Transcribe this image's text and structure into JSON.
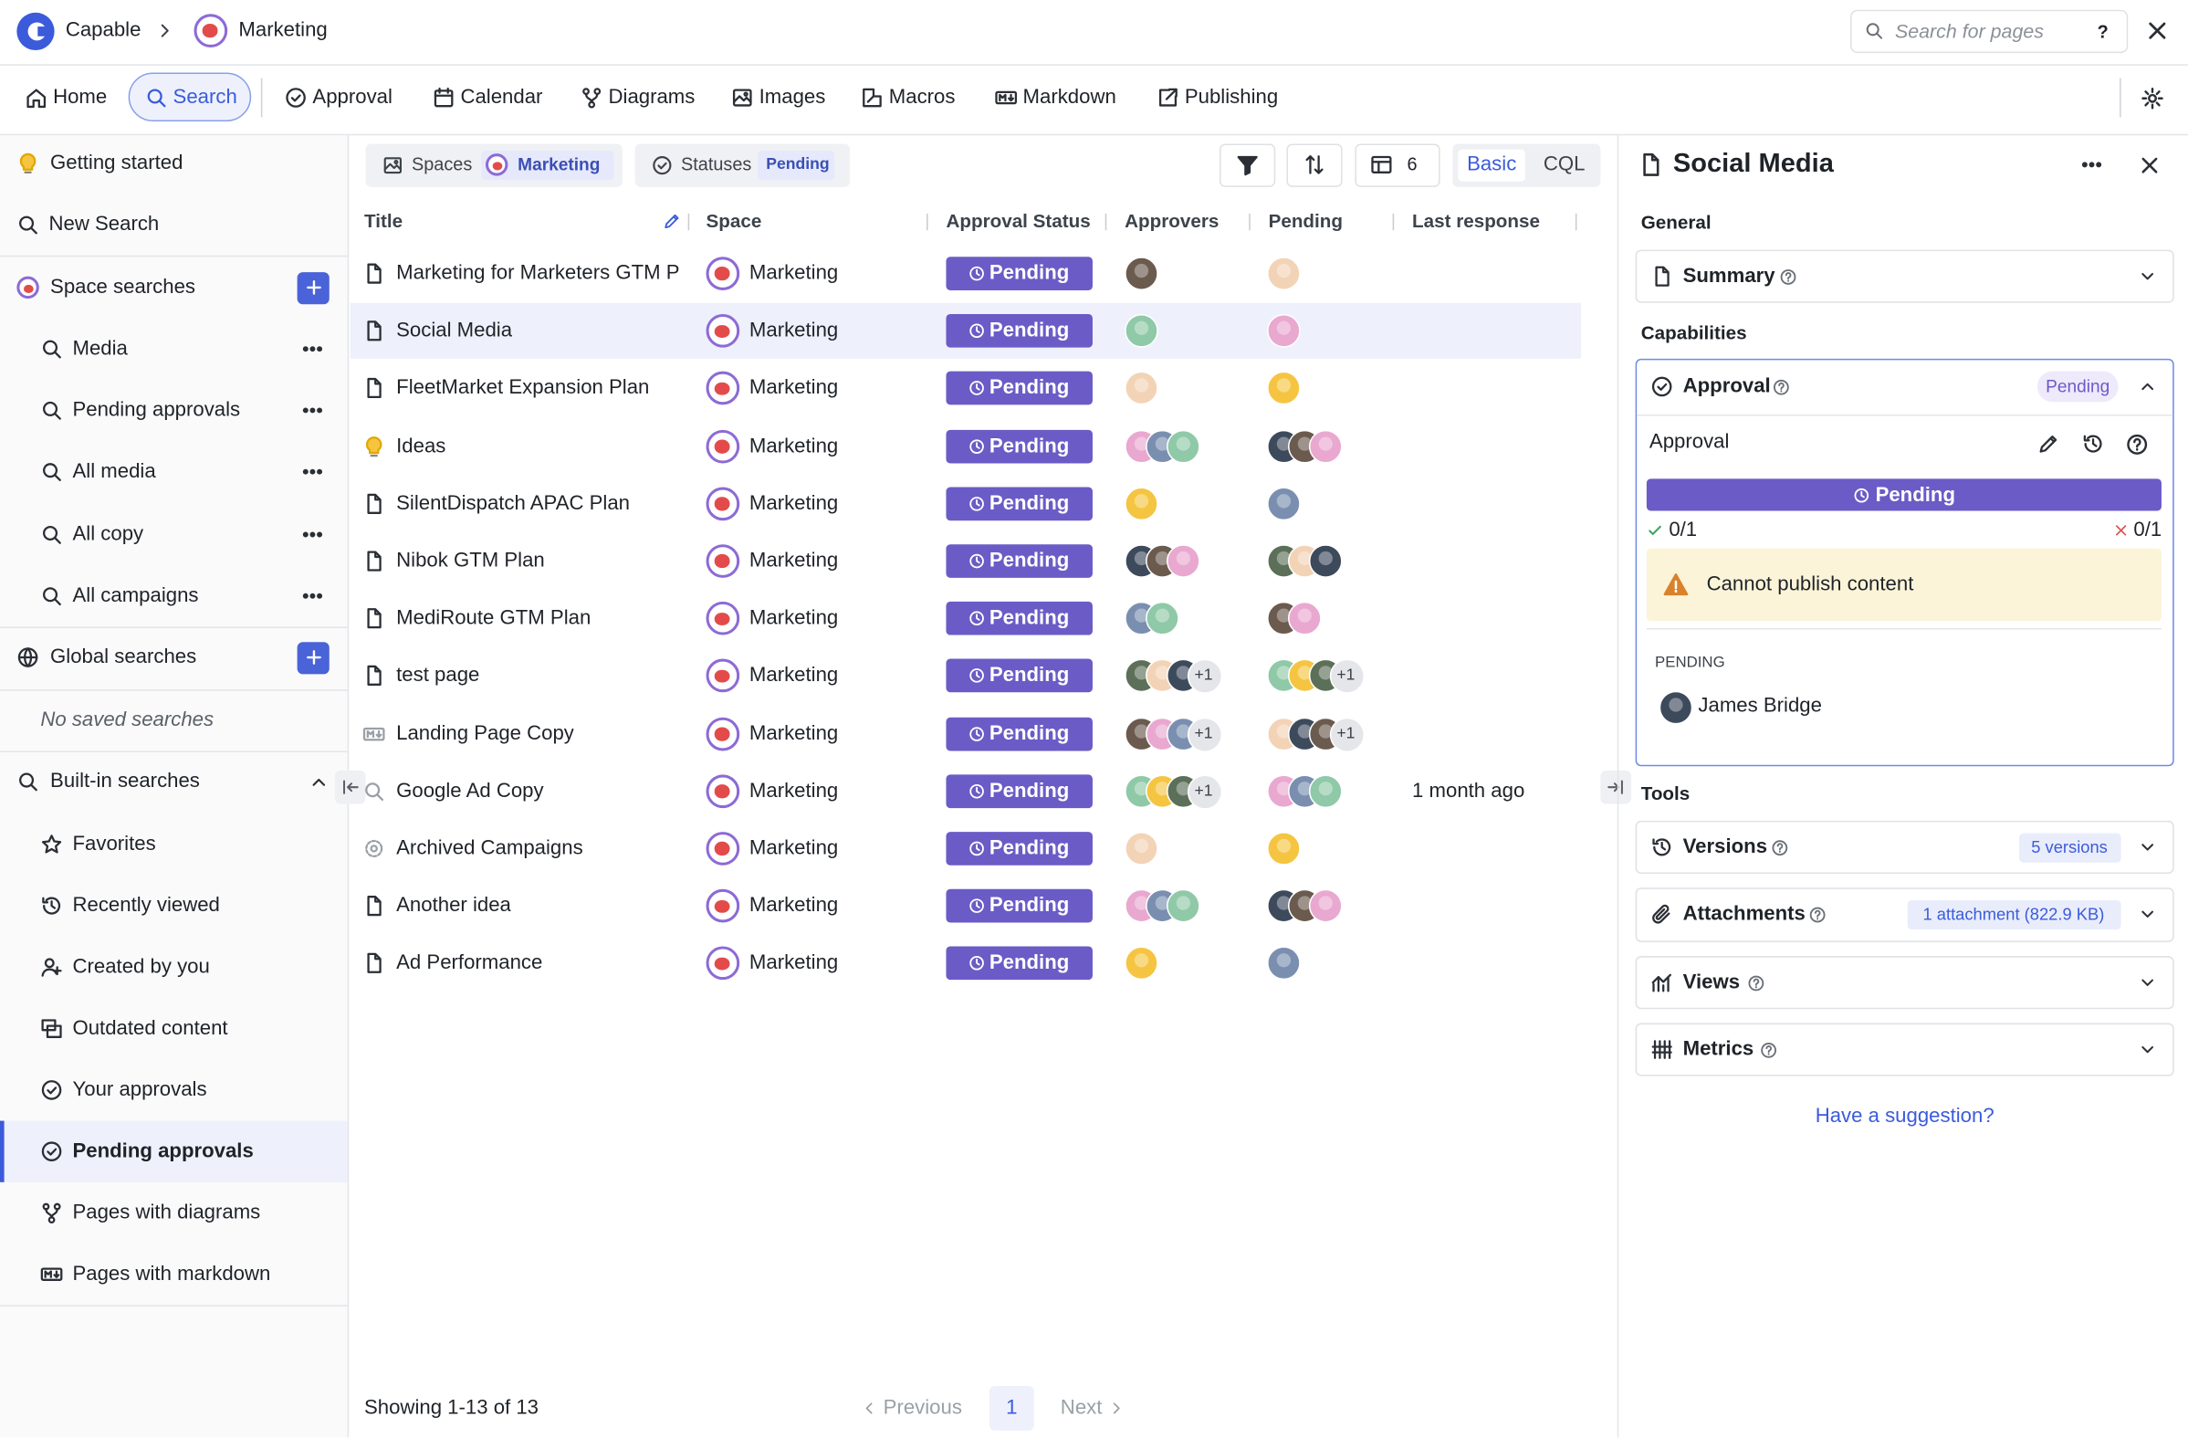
{
  "header": {
    "app": "Capable",
    "space": "Marketing",
    "search_placeholder": "Search for pages",
    "help": "?"
  },
  "nav": [
    "Home",
    "Search",
    "Approval",
    "Calendar",
    "Diagrams",
    "Images",
    "Macros",
    "Markdown",
    "Publishing"
  ],
  "sidebar": {
    "top": [
      "Getting started",
      "New Search"
    ],
    "space_searches": {
      "title": "Space searches",
      "items": [
        "Media",
        "Pending approvals",
        "All media",
        "All copy",
        "All campaigns"
      ]
    },
    "global_searches": {
      "title": "Global searches",
      "empty": "No saved searches"
    },
    "builtin": {
      "title": "Built-in searches",
      "items": [
        "Favorites",
        "Recently viewed",
        "Created by you",
        "Outdated content",
        "Your approvals",
        "Pending approvals",
        "Pages with diagrams",
        "Pages with markdown"
      ]
    }
  },
  "filters": {
    "spaces_label": "Spaces",
    "spaces_value": "Marketing",
    "statuses_label": "Statuses",
    "statuses_value": "Pending",
    "columns_count": 6,
    "modes": [
      "Basic",
      "CQL"
    ]
  },
  "table": {
    "columns": [
      "Title",
      "Space",
      "Approval Status",
      "Approvers",
      "Pending",
      "Last response"
    ],
    "rows": [
      {
        "title": "Marketing for Marketers GTM P",
        "space": "Marketing",
        "status": "Pending"
      },
      {
        "title": "Social Media",
        "space": "Marketing",
        "status": "Pending"
      },
      {
        "title": "FleetMarket Expansion Plan",
        "space": "Marketing",
        "status": "Pending"
      },
      {
        "title": "Ideas",
        "space": "Marketing",
        "status": "Pending"
      },
      {
        "title": "SilentDispatch APAC Plan",
        "space": "Marketing",
        "status": "Pending"
      },
      {
        "title": "Nibok GTM Plan",
        "space": "Marketing",
        "status": "Pending"
      },
      {
        "title": "MediRoute GTM Plan",
        "space": "Marketing",
        "status": "Pending"
      },
      {
        "title": "test page",
        "space": "Marketing",
        "status": "Pending",
        "approvers_more": "+1",
        "pending_more": "+1"
      },
      {
        "title": "Landing Page Copy",
        "space": "Marketing",
        "status": "Pending",
        "approvers_more": "+1",
        "pending_more": "+1"
      },
      {
        "title": "Google Ad Copy",
        "space": "Marketing",
        "status": "Pending",
        "approvers_more": "+1",
        "last_response": "1 month ago"
      },
      {
        "title": "Archived Campaigns",
        "space": "Marketing",
        "status": "Pending"
      },
      {
        "title": "Another idea",
        "space": "Marketing",
        "status": "Pending"
      },
      {
        "title": "Ad Performance",
        "space": "Marketing",
        "status": "Pending"
      }
    ]
  },
  "footer": {
    "showing": "Showing 1-13 of 13",
    "previous": "Previous",
    "page": 1,
    "next": "Next"
  },
  "panel": {
    "title": "Social Media",
    "general": "General",
    "summary": "Summary",
    "capabilities": "Capabilities",
    "approval": {
      "title": "Approval",
      "badge": "Pending",
      "subtitle": "Approval",
      "status": "Pending",
      "approved": "0/1",
      "rejected": "0/1",
      "warning": "Cannot publish content",
      "pending_label": "PENDING",
      "pending_user": "James Bridge"
    },
    "tools": "Tools",
    "versions": {
      "title": "Versions",
      "badge": "5 versions"
    },
    "attachments": {
      "title": "Attachments",
      "badge": "1 attachment (822.9 KB)"
    },
    "views": "Views",
    "metrics": "Metrics",
    "suggestion": "Have a suggestion?"
  }
}
